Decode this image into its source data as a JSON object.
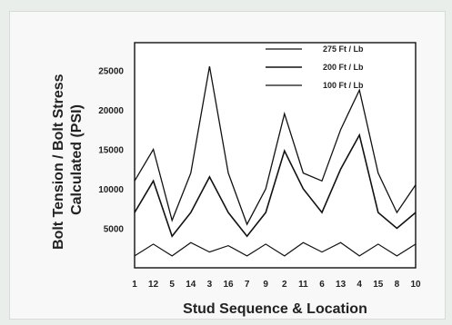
{
  "chart_data": {
    "type": "line",
    "xlabel": "Stud Sequence & Location",
    "ylabel": [
      "Bolt Tension / Bolt Stress",
      "Calculated (PSI)"
    ],
    "categories": [
      "1",
      "12",
      "5",
      "14",
      "3",
      "16",
      "7",
      "9",
      "2",
      "11",
      "6",
      "13",
      "4",
      "15",
      "8",
      "10"
    ],
    "yticks": [
      5000,
      10000,
      15000,
      20000,
      25000
    ],
    "ylim": [
      0,
      28500
    ],
    "grid": false,
    "legend_position": "top-right",
    "series": [
      {
        "name": "275 Ft / Lb",
        "values": [
          11000,
          15000,
          6000,
          12000,
          25500,
          12000,
          5500,
          10000,
          19500,
          12000,
          11000,
          17500,
          22500,
          12000,
          7000,
          10500
        ]
      },
      {
        "name": "200 Ft / Lb",
        "values": [
          7000,
          11000,
          4000,
          7000,
          11500,
          7000,
          4000,
          7000,
          14800,
          10000,
          7000,
          12500,
          16800,
          7000,
          5000,
          7000
        ]
      },
      {
        "name": "100 Ft / Lb",
        "values": [
          1500,
          3000,
          1500,
          3200,
          2000,
          2800,
          1500,
          3000,
          1500,
          3200,
          2000,
          3200,
          1500,
          3000,
          1500,
          3000
        ]
      }
    ],
    "colors": {
      "line": "#111111",
      "frame": "#111111",
      "background": "#ffffff"
    }
  }
}
